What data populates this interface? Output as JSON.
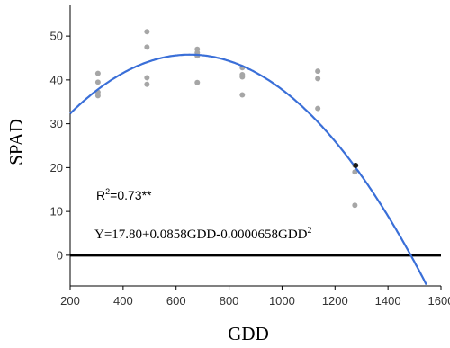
{
  "chart_data": {
    "type": "scatter",
    "title": "",
    "xlabel": "GDD",
    "ylabel": "SPAD",
    "xlim": [
      200,
      1600
    ],
    "ylim": [
      -7,
      57
    ],
    "x_ticks": [
      200,
      400,
      600,
      800,
      1000,
      1200,
      1400,
      1600
    ],
    "y_ticks": [
      0,
      10,
      20,
      30,
      40,
      50
    ],
    "grid": false,
    "points": [
      {
        "x": 305,
        "y": 41.5
      },
      {
        "x": 305,
        "y": 39.5
      },
      {
        "x": 305,
        "y": 37.2
      },
      {
        "x": 305,
        "y": 36.4
      },
      {
        "x": 490,
        "y": 51.0
      },
      {
        "x": 490,
        "y": 47.5
      },
      {
        "x": 490,
        "y": 40.5
      },
      {
        "x": 490,
        "y": 39.0
      },
      {
        "x": 680,
        "y": 47.0
      },
      {
        "x": 680,
        "y": 46.2
      },
      {
        "x": 680,
        "y": 45.5
      },
      {
        "x": 680,
        "y": 39.4
      },
      {
        "x": 850,
        "y": 42.8
      },
      {
        "x": 850,
        "y": 41.2
      },
      {
        "x": 850,
        "y": 40.7
      },
      {
        "x": 850,
        "y": 36.6
      },
      {
        "x": 1135,
        "y": 42.0
      },
      {
        "x": 1135,
        "y": 40.3
      },
      {
        "x": 1135,
        "y": 33.5
      },
      {
        "x": 1275,
        "y": 20.5
      },
      {
        "x": 1275,
        "y": 19.0
      },
      {
        "x": 1275,
        "y": 11.4
      }
    ],
    "highlight_point": {
      "x": 1278,
      "y": 20.5
    },
    "fit": {
      "intercept": 17.8,
      "b1": 0.0858,
      "b2": -6.58e-05
    },
    "reference_line_y": 0,
    "point_color": "#a6a6a6",
    "curve_color": "#3a6fd8",
    "baseline_color": "#000000"
  },
  "annotations": {
    "r2_prefix": "R",
    "r2_sup": "2",
    "r2_rest": "=0.73**",
    "equation_main": "Y=17.80+0.0858GDD-0.0000658GDD",
    "equation_sup": "2"
  }
}
